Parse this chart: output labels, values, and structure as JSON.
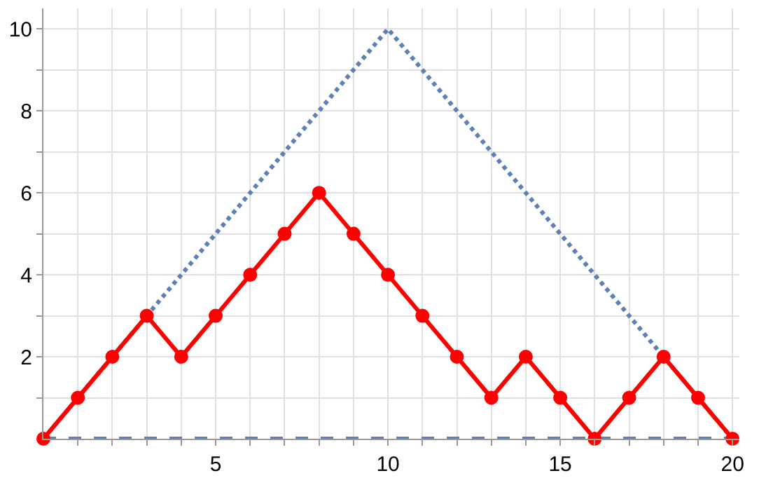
{
  "chart_data": {
    "type": "line",
    "xlim": [
      0,
      20.2
    ],
    "ylim": [
      0,
      10.5
    ],
    "xticks": [
      {
        "value": 1,
        "label": null
      },
      {
        "value": 2,
        "label": null
      },
      {
        "value": 3,
        "label": null
      },
      {
        "value": 4,
        "label": null
      },
      5,
      {
        "value": 6,
        "label": null
      },
      {
        "value": 7,
        "label": null
      },
      {
        "value": 8,
        "label": null
      },
      {
        "value": 9,
        "label": null
      },
      10,
      {
        "value": 11,
        "label": null
      },
      {
        "value": 12,
        "label": null
      },
      {
        "value": 13,
        "label": null
      },
      {
        "value": 14,
        "label": null
      },
      15,
      {
        "value": 16,
        "label": null
      },
      {
        "value": 17,
        "label": null
      },
      {
        "value": 18,
        "label": null
      },
      {
        "value": 19,
        "label": null
      },
      20
    ],
    "yticks": [
      {
        "value": 1,
        "label": null
      },
      2,
      {
        "value": 3,
        "label": null
      },
      4,
      {
        "value": 5,
        "label": null
      },
      6,
      {
        "value": 7,
        "label": null
      },
      8,
      {
        "value": 9,
        "label": null
      },
      10
    ],
    "grid": true,
    "series": [
      {
        "color": "#5e81b5",
        "line_style": "dotted",
        "marker": "none",
        "x": [
          0,
          10,
          20
        ],
        "values": [
          0,
          10,
          0
        ]
      },
      {
        "color": "#5e81b5",
        "line_style": "dashed",
        "marker": "none",
        "x": [
          0,
          20
        ],
        "values": [
          0,
          0
        ]
      },
      {
        "color": "#ff0000",
        "line_style": "solid",
        "marker": "circle",
        "x": [
          0,
          1,
          2,
          3,
          4,
          5,
          6,
          7,
          8,
          9,
          10,
          11,
          12,
          13,
          14,
          15,
          16,
          17,
          18,
          19,
          20
        ],
        "values": [
          0,
          1,
          2,
          3,
          2,
          3,
          4,
          5,
          6,
          5,
          4,
          3,
          2,
          1,
          2,
          1,
          0,
          1,
          2,
          1,
          0
        ]
      }
    ]
  }
}
